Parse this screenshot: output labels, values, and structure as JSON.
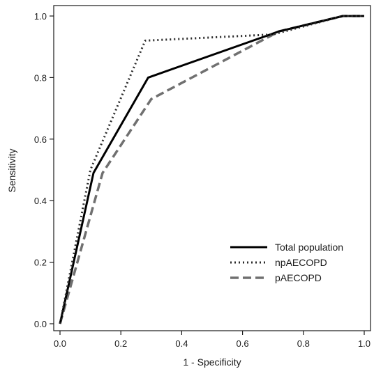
{
  "chart_data": {
    "type": "line",
    "title": "",
    "xlabel": "1 - Specificity",
    "ylabel": "Sensitivity",
    "xlim": [
      0,
      1
    ],
    "ylim": [
      0,
      1
    ],
    "xticks": [
      "0.0",
      "0.2",
      "0.4",
      "0.6",
      "0.8",
      "1.0"
    ],
    "yticks": [
      "0.0",
      "0.2",
      "0.4",
      "0.6",
      "0.8",
      "1.0"
    ],
    "grid": false,
    "legend_position": "bottom-right",
    "series": [
      {
        "name": "Total population",
        "style": "solid",
        "color": "#000000",
        "x": [
          0.0,
          0.11,
          0.29,
          0.72,
          0.93,
          1.0
        ],
        "y": [
          0.0,
          0.49,
          0.8,
          0.95,
          1.0,
          1.0
        ]
      },
      {
        "name": "npAECOPD",
        "style": "dotted",
        "color": "#2a2a2a",
        "x": [
          0.0,
          0.1,
          0.28,
          0.7,
          0.93,
          1.0
        ],
        "y": [
          0.0,
          0.5,
          0.92,
          0.94,
          1.0,
          1.0
        ]
      },
      {
        "name": "pAECOPD",
        "style": "dashed",
        "color": "#707070",
        "x": [
          0.0,
          0.14,
          0.3,
          0.72,
          0.93,
          1.0
        ],
        "y": [
          0.0,
          0.49,
          0.73,
          0.95,
          1.0,
          1.0
        ]
      }
    ]
  }
}
